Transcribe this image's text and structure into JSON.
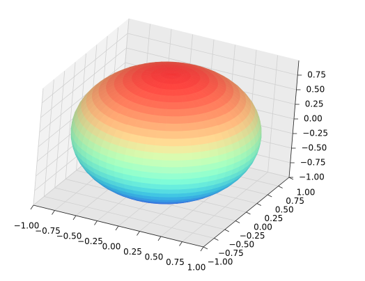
{
  "chart_data": {
    "type": "surface3d",
    "surface": "sphere",
    "radius": 1,
    "colormap": "rainbow",
    "xlim": [
      -1,
      1
    ],
    "ylim": [
      -1,
      1
    ],
    "zlim": [
      -1,
      1
    ],
    "xticks": [
      {
        "value": -1,
        "label": "−1.00"
      },
      {
        "value": -0.75,
        "label": "−0.75"
      },
      {
        "value": -0.5,
        "label": "−0.50"
      },
      {
        "value": -0.25,
        "label": "−0.25"
      },
      {
        "value": 0,
        "label": "0.00"
      },
      {
        "value": 0.25,
        "label": "0.25"
      },
      {
        "value": 0.5,
        "label": "0.50"
      },
      {
        "value": 0.75,
        "label": "0.75"
      },
      {
        "value": 1,
        "label": "1.00"
      }
    ],
    "yticks": [
      {
        "value": -1,
        "label": "−1.00"
      },
      {
        "value": -0.75,
        "label": "−0.75"
      },
      {
        "value": -0.5,
        "label": "−0.50"
      },
      {
        "value": -0.25,
        "label": "−0.25"
      },
      {
        "value": 0,
        "label": "0.00"
      },
      {
        "value": 0.25,
        "label": "0.25"
      },
      {
        "value": 0.5,
        "label": "0.50"
      },
      {
        "value": 0.75,
        "label": "0.75"
      },
      {
        "value": 1,
        "label": "1.00"
      }
    ],
    "zticks": [
      {
        "value": -1,
        "label": "−1.00"
      },
      {
        "value": -0.75,
        "label": "−0.75"
      },
      {
        "value": -0.5,
        "label": "−0.50"
      },
      {
        "value": -0.25,
        "label": "−0.25"
      },
      {
        "value": 0,
        "label": "0.00"
      },
      {
        "value": 0.25,
        "label": "0.25"
      },
      {
        "value": 0.5,
        "label": "0.50"
      },
      {
        "value": 0.75,
        "label": "0.75"
      }
    ],
    "grid": true
  }
}
